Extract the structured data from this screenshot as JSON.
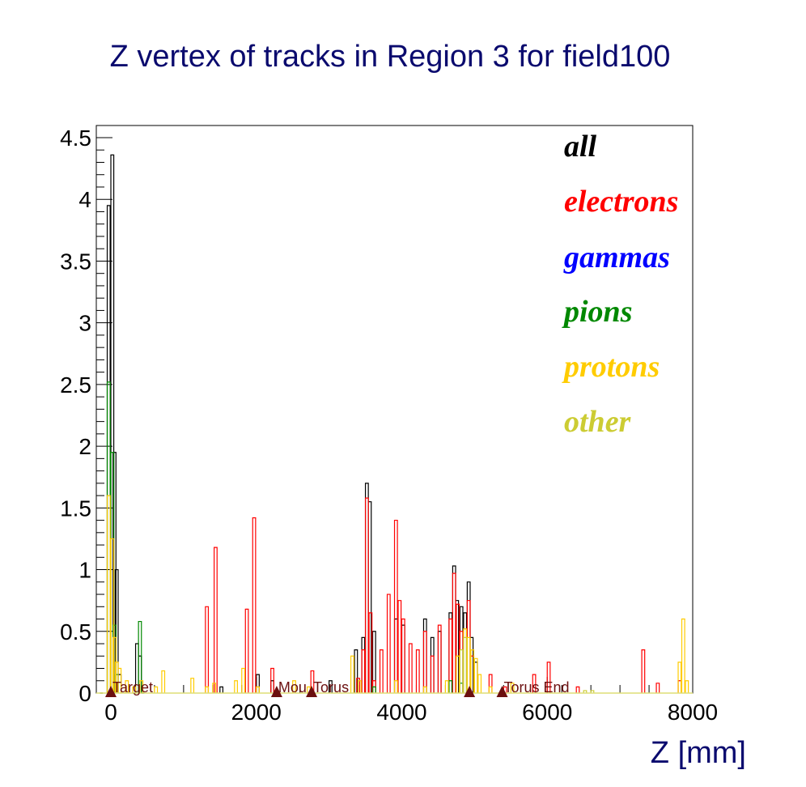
{
  "chart_data": {
    "type": "step-histogram",
    "title": "Z vertex of tracks in Region 3 for field100",
    "xlabel": "Z [mm]",
    "ylabel": "",
    "xlim": [
      -200,
      8000
    ],
    "ylim": [
      0,
      4.6
    ],
    "x_ticks": [
      0,
      2000,
      4000,
      6000,
      8000
    ],
    "y_ticks": [
      0,
      0.5,
      1,
      1.5,
      2,
      2.5,
      3,
      3.5,
      4,
      4.5
    ],
    "legend_placement": "top-right",
    "series": [
      {
        "name": "all",
        "color": "#000000",
        "points": [
          [
            -150,
            0
          ],
          [
            -50,
            3.95
          ],
          [
            0,
            4.36
          ],
          [
            30,
            1.95
          ],
          [
            60,
            1.0
          ],
          [
            100,
            0.15
          ],
          [
            300,
            0.0
          ],
          [
            340,
            0.4
          ],
          [
            380,
            0.3
          ],
          [
            420,
            0.0
          ],
          [
            1500,
            0.05
          ],
          [
            2000,
            0.15
          ],
          [
            2200,
            0.1
          ],
          [
            3000,
            0.1
          ],
          [
            3350,
            0.35
          ],
          [
            3450,
            0.45
          ],
          [
            3500,
            1.7
          ],
          [
            3540,
            1.55
          ],
          [
            3600,
            0.5
          ],
          [
            3900,
            0.6
          ],
          [
            4000,
            0.55
          ],
          [
            4300,
            0.6
          ],
          [
            4400,
            0.45
          ],
          [
            4500,
            0.5
          ],
          [
            4650,
            0.65
          ],
          [
            4700,
            1.03
          ],
          [
            4740,
            0.75
          ],
          [
            4800,
            0.7
          ],
          [
            4850,
            0.65
          ],
          [
            4900,
            0.9
          ],
          [
            4940,
            0.45
          ],
          [
            5000,
            0.25
          ]
        ]
      },
      {
        "name": "electrons",
        "color": "#ff0000",
        "points": [
          [
            1300,
            0.7
          ],
          [
            1420,
            1.18
          ],
          [
            1850,
            0.68
          ],
          [
            1950,
            1.42
          ],
          [
            2200,
            0.2
          ],
          [
            2750,
            0.18
          ],
          [
            3380,
            0.12
          ],
          [
            3450,
            0.35
          ],
          [
            3500,
            1.58
          ],
          [
            3550,
            0.65
          ],
          [
            3600,
            0.1
          ],
          [
            3700,
            0.35
          ],
          [
            3800,
            0.8
          ],
          [
            3900,
            1.4
          ],
          [
            3950,
            0.75
          ],
          [
            4000,
            0.6
          ],
          [
            4100,
            0.4
          ],
          [
            4200,
            0.35
          ],
          [
            4300,
            0.5
          ],
          [
            4400,
            0.3
          ],
          [
            4500,
            0.55
          ],
          [
            4650,
            0.6
          ],
          [
            4700,
            0.97
          ],
          [
            4750,
            0.72
          ],
          [
            4800,
            0.5
          ],
          [
            4900,
            0.75
          ],
          [
            4950,
            0.3
          ],
          [
            5200,
            0.15
          ],
          [
            5400,
            0.05
          ],
          [
            5800,
            0.15
          ],
          [
            6000,
            0.25
          ],
          [
            6400,
            0.05
          ],
          [
            7300,
            0.35
          ],
          [
            7500,
            0.08
          ],
          [
            7800,
            0.1
          ]
        ]
      },
      {
        "name": "gammas",
        "color": "#0000ff",
        "points": []
      },
      {
        "name": "pions",
        "color": "#008800",
        "points": [
          [
            -150,
            0.0
          ],
          [
            -50,
            2.52
          ],
          [
            0,
            1.95
          ],
          [
            30,
            0.55
          ],
          [
            60,
            0.15
          ],
          [
            300,
            0.0
          ],
          [
            380,
            0.58
          ],
          [
            420,
            0.0
          ],
          [
            3600,
            0.05
          ],
          [
            4650,
            0.1
          ],
          [
            4800,
            0.08
          ]
        ]
      },
      {
        "name": "protons",
        "color": "#ffcc00",
        "points": [
          [
            -150,
            0.0
          ],
          [
            -50,
            1.6
          ],
          [
            0,
            1.25
          ],
          [
            30,
            0.45
          ],
          [
            60,
            0.25
          ],
          [
            100,
            0.2
          ],
          [
            200,
            0.1
          ],
          [
            300,
            0.05
          ],
          [
            400,
            0.1
          ],
          [
            600,
            0.05
          ],
          [
            700,
            0.18
          ],
          [
            1100,
            0.12
          ],
          [
            1300,
            0.05
          ],
          [
            1400,
            0.08
          ],
          [
            1700,
            0.1
          ],
          [
            1800,
            0.2
          ],
          [
            2000,
            0.05
          ],
          [
            2500,
            0.1
          ],
          [
            2700,
            0.05
          ],
          [
            3300,
            0.3
          ],
          [
            3400,
            0.1
          ],
          [
            3900,
            0.1
          ],
          [
            4300,
            0.05
          ],
          [
            4600,
            0.1
          ],
          [
            4750,
            0.3
          ],
          [
            4850,
            0.52
          ],
          [
            4900,
            0.45
          ],
          [
            4950,
            0.35
          ],
          [
            5000,
            0.28
          ],
          [
            5050,
            0.15
          ],
          [
            5200,
            0.05
          ],
          [
            5500,
            0.08
          ],
          [
            7800,
            0.25
          ],
          [
            7850,
            0.6
          ],
          [
            7900,
            0.1
          ]
        ]
      },
      {
        "name": "other",
        "color": "#cccc33",
        "points": [
          [
            4800,
            0.35
          ],
          [
            4850,
            0.45
          ],
          [
            6500,
            0.02
          ],
          [
            6600,
            0.02
          ]
        ]
      }
    ],
    "markers": [
      {
        "label": "Target",
        "z": 0
      },
      {
        "label": "Mou",
        "z": 2280
      },
      {
        "label": "Torus",
        "z": 2760
      },
      {
        "label": "",
        "z": 4930
      },
      {
        "label": "Torus End",
        "z": 5380
      }
    ]
  }
}
